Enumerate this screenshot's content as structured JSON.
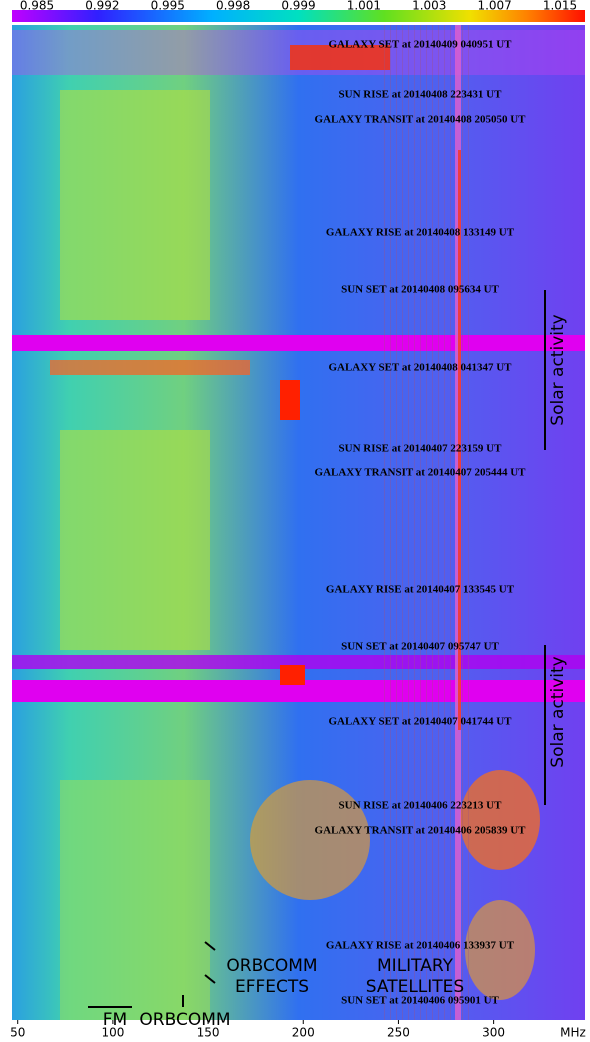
{
  "chart_data": {
    "type": "waterfall",
    "colorbar_labels": [
      "0.985",
      "0.992",
      "0.995",
      "0.998",
      "0.999",
      "1.001",
      "1.003",
      "1.007",
      "1.015"
    ],
    "xlim": [
      47,
      348
    ],
    "xticks": [
      50,
      100,
      150,
      200,
      250,
      300
    ],
    "x_unit": "MHz",
    "annotations": [
      "GALAXY SET at 20140409 040951 UT",
      "SUN RISE at 20140408 223431 UT",
      "GALAXY TRANSIT at 20140408 205050 UT",
      "GALAXY RISE at 20140408 133149 UT",
      "SUN SET at 20140408 095634 UT",
      "GALAXY SET at 20140408 041347 UT",
      "SUN RISE at 20140407 223159 UT",
      "GALAXY TRANSIT at 20140407 205444 UT",
      "GALAXY RISE at 20140407 133545 UT",
      "SUN SET at 20140407 095747 UT",
      "GALAXY SET at 20140407 041744 UT",
      "SUN RISE at 20140406 223213 UT",
      "GALAXY TRANSIT at 20140406 205839 UT",
      "GALAXY RISE at 20140406 133937 UT",
      "SUN SET at 20140406 095901 UT"
    ],
    "solar_labels": [
      "Solar activity",
      "Solar activity"
    ],
    "feature_labels": [
      "ORBCOMM",
      "EFFECTS",
      "MILITARY",
      "SATELLITES",
      "FM",
      "ORBCOMM"
    ]
  }
}
